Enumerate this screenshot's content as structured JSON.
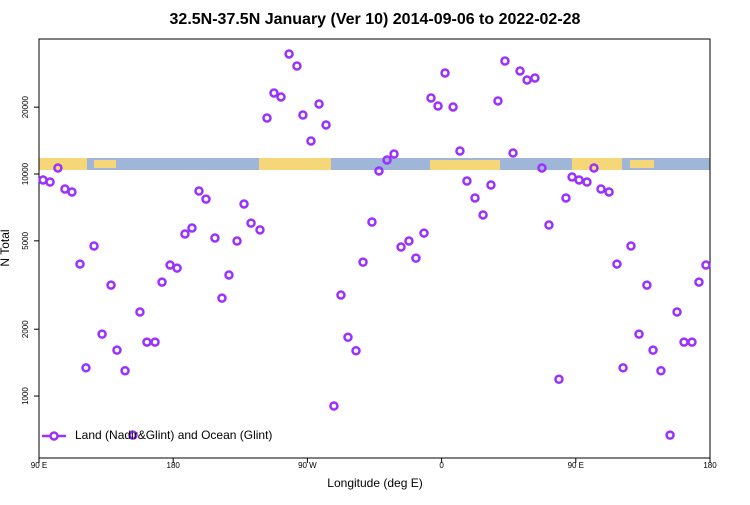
{
  "chart_data": {
    "type": "scatter",
    "title": "32.5N-37.5N January (Ver 10)   2014-09-06 to 2022-02-28",
    "x_label": "Longitude (deg E)",
    "y_label": "N Total",
    "yscale": "log",
    "legend": "bottom-left",
    "xlim": [
      90,
      540
    ],
    "ylim": [
      526,
      40550
    ],
    "xticks": [
      {
        "value": 90,
        "label": "90 E"
      },
      180,
      {
        "value": 270,
        "label": "90 W"
      },
      {
        "value": 360,
        "label": "0"
      },
      {
        "value": 450,
        "label": "90 E"
      },
      {
        "value": 540,
        "label": "180"
      }
    ],
    "yticks": [
      1000,
      2000,
      5000,
      10000,
      20000
    ],
    "series": [
      {
        "name": "Land (Nadir&Glint) and Ocean (Glint)",
        "color": "#9b30ff",
        "x": [
          92.7,
          97.4,
          102.7,
          107.4,
          112.1,
          117.5,
          121.5,
          126.9,
          132.3,
          138.3,
          142.3,
          147.7,
          153,
          157.7,
          162.4,
          167.8,
          172.5,
          177.9,
          182.6,
          187.9,
          192.6,
          197.3,
          202,
          208,
          212.7,
          217.4,
          222.8,
          227.5,
          232.2,
          238.2,
          242.9,
          247.6,
          252.3,
          257.7,
          263,
          267,
          272.4,
          277.8,
          282.5,
          287.8,
          292.5,
          297.2,
          302.6,
          307.3,
          313.3,
          318,
          323.4,
          328.1,
          332.8,
          338.1,
          342.8,
          348.2,
          352.9,
          357.6,
          362.3,
          367.7,
          372.3,
          377,
          382.4,
          387.8,
          393.1,
          397.8,
          402.5,
          407.9,
          412.6,
          417.3,
          422.6,
          427.3,
          432,
          438.7,
          443.4,
          447.5,
          452.2,
          457.5,
          462.2,
          466.9,
          472.3,
          477.6,
          481.7,
          487,
          492.4,
          497.7,
          501.8,
          507.1,
          513.2,
          517.9,
          522.6,
          527.9,
          532.6,
          537.3
        ],
        "values": [
          9400,
          9200,
          10640,
          8560,
          8300,
          3930,
          1340,
          4740,
          1900,
          3160,
          1610,
          1300,
          667,
          2390,
          1750,
          1750,
          3260,
          3890,
          3770,
          5370,
          5710,
          8380,
          7710,
          5150,
          2760,
          3510,
          4990,
          7330,
          6010,
          5600,
          17870,
          23170,
          22230,
          34720,
          30650,
          18440,
          14080,
          20660,
          16630,
          902,
          2850,
          1840,
          1600,
          4010,
          6080,
          10320,
          11560,
          12300,
          4690,
          4990,
          4180,
          5420,
          21990,
          20240,
          28510,
          20040,
          12690,
          9300,
          7800,
          6540,
          8920,
          21330,
          32280,
          12430,
          29110,
          26500,
          27060,
          10640,
          5890,
          1190,
          7800,
          9690,
          9400,
          9200,
          10640,
          8560,
          8300,
          3930,
          1340,
          4740,
          1900,
          3160,
          1610,
          1300,
          667,
          2390,
          1750,
          1750,
          3260,
          3890
        ]
      }
    ]
  }
}
